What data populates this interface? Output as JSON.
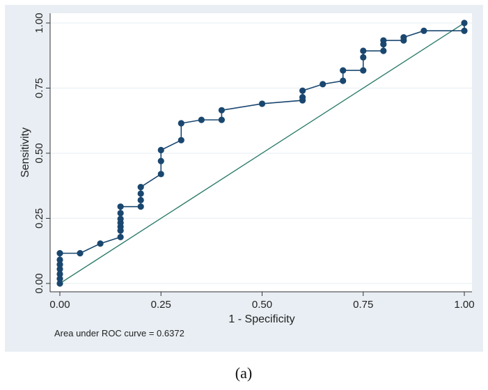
{
  "chart_data": {
    "type": "line",
    "title": "",
    "xlabel": "1 - Specificity",
    "ylabel": "Sensitivity",
    "xlim": [
      0,
      1
    ],
    "ylim": [
      0,
      1
    ],
    "x_ticks": [
      "0.00",
      "0.25",
      "0.50",
      "0.75",
      "1.00"
    ],
    "y_ticks": [
      "0.00",
      "0.25",
      "0.50",
      "0.75",
      "1.00"
    ],
    "grid": true,
    "colors": {
      "background": "#e8eef3",
      "plot_area": "#ffffff",
      "curve": "#1a476f",
      "reference": "#2e7d6b"
    },
    "series": [
      {
        "values": [
          [
            0.0,
            0.0
          ],
          [
            0.0,
            0.018
          ],
          [
            0.0,
            0.036
          ],
          [
            0.0,
            0.055
          ],
          [
            0.0,
            0.073
          ],
          [
            0.0,
            0.091
          ],
          [
            0.0,
            0.116
          ],
          [
            0.05,
            0.116
          ],
          [
            0.1,
            0.153
          ],
          [
            0.15,
            0.178
          ],
          [
            0.15,
            0.203
          ],
          [
            0.15,
            0.218
          ],
          [
            0.15,
            0.233
          ],
          [
            0.15,
            0.248
          ],
          [
            0.15,
            0.27
          ],
          [
            0.15,
            0.295
          ],
          [
            0.2,
            0.295
          ],
          [
            0.2,
            0.32
          ],
          [
            0.2,
            0.345
          ],
          [
            0.2,
            0.37
          ],
          [
            0.25,
            0.42
          ],
          [
            0.25,
            0.47
          ],
          [
            0.25,
            0.512
          ],
          [
            0.3,
            0.55
          ],
          [
            0.3,
            0.615
          ],
          [
            0.35,
            0.628
          ],
          [
            0.4,
            0.628
          ],
          [
            0.4,
            0.665
          ],
          [
            0.5,
            0.69
          ],
          [
            0.6,
            0.703
          ],
          [
            0.6,
            0.715
          ],
          [
            0.6,
            0.74
          ],
          [
            0.65,
            0.765
          ],
          [
            0.7,
            0.778
          ],
          [
            0.7,
            0.818
          ],
          [
            0.75,
            0.818
          ],
          [
            0.75,
            0.868
          ],
          [
            0.75,
            0.893
          ],
          [
            0.8,
            0.893
          ],
          [
            0.8,
            0.918
          ],
          [
            0.8,
            0.933
          ],
          [
            0.85,
            0.933
          ],
          [
            0.85,
            0.945
          ],
          [
            0.9,
            0.97
          ],
          [
            1.0,
            0.97
          ],
          [
            1.0,
            1.0
          ]
        ]
      }
    ],
    "reference_line": [
      [
        0,
        0
      ],
      [
        1,
        1
      ]
    ],
    "annotation": "Area under ROC curve = 0.6372"
  },
  "panel_label": "(a)"
}
